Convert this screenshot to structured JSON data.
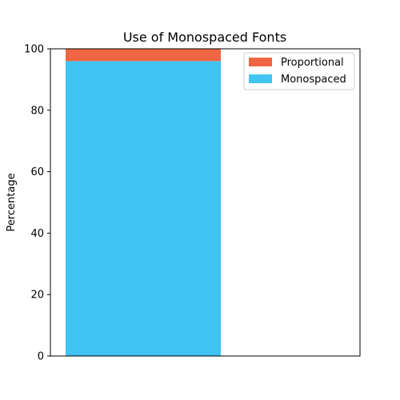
{
  "chart_data": {
    "type": "bar",
    "stacked": true,
    "title": "Use of Monospaced Fonts",
    "xlabel": "",
    "ylabel": "Percentage",
    "ylim": [
      0,
      100
    ],
    "yticks": [
      "0",
      "20",
      "40",
      "60",
      "80",
      "100"
    ],
    "categories": [
      ""
    ],
    "series": [
      {
        "name": "Monospaced",
        "values": [
          96
        ],
        "color": "#40c4f2"
      },
      {
        "name": "Proportional",
        "values": [
          4
        ],
        "color": "#f06543"
      }
    ],
    "legend_position": "top-right",
    "legend_order": [
      "Proportional",
      "Monospaced"
    ],
    "grid": false
  }
}
